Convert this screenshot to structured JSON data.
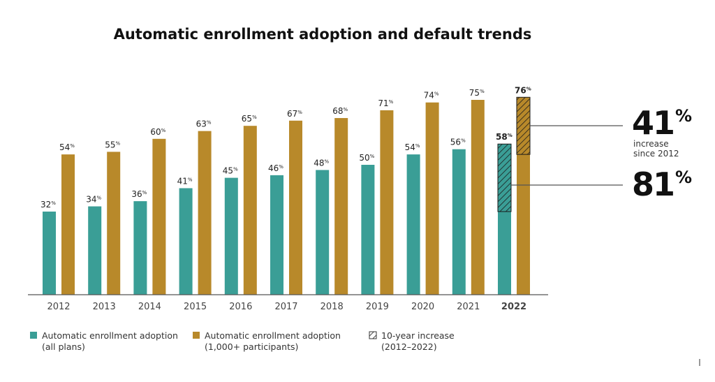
{
  "chart_data": {
    "type": "bar",
    "title": "Automatic enrollment adoption and default trends",
    "categories": [
      "2012",
      "2013",
      "2014",
      "2015",
      "2016",
      "2017",
      "2018",
      "2019",
      "2020",
      "2021",
      "2022"
    ],
    "series": [
      {
        "name": "Automatic enrollment adoption (all plans)",
        "legend_lines": [
          "Automatic enrollment adoption",
          "(all plans)"
        ],
        "color": "#3a9e96",
        "values": [
          32,
          34,
          36,
          41,
          45,
          46,
          48,
          50,
          54,
          56,
          58
        ]
      },
      {
        "name": "Automatic enrollment adoption (1,000+ participants)",
        "legend_lines": [
          "Automatic enrollment adoption",
          "(1,000+ participants)"
        ],
        "color": "#b8892a",
        "values": [
          54,
          55,
          60,
          63,
          65,
          67,
          68,
          71,
          74,
          75,
          76
        ]
      }
    ],
    "highlight": {
      "legend_lines": [
        "10-year increase",
        "(2012–2022)"
      ],
      "from_category": "2012",
      "to_category": "2022",
      "pattern": "diagonal-hatch"
    },
    "annotations": [
      {
        "value": "41",
        "unit": "%",
        "caption": [
          "increase",
          "since 2012"
        ],
        "series": 1
      },
      {
        "value": "81",
        "unit": "%",
        "caption": [],
        "series": 0
      }
    ],
    "value_unit": "%",
    "ylim": [
      0,
      80
    ],
    "grid": false,
    "legend_position": "bottom-left",
    "bold_category": "2022"
  }
}
